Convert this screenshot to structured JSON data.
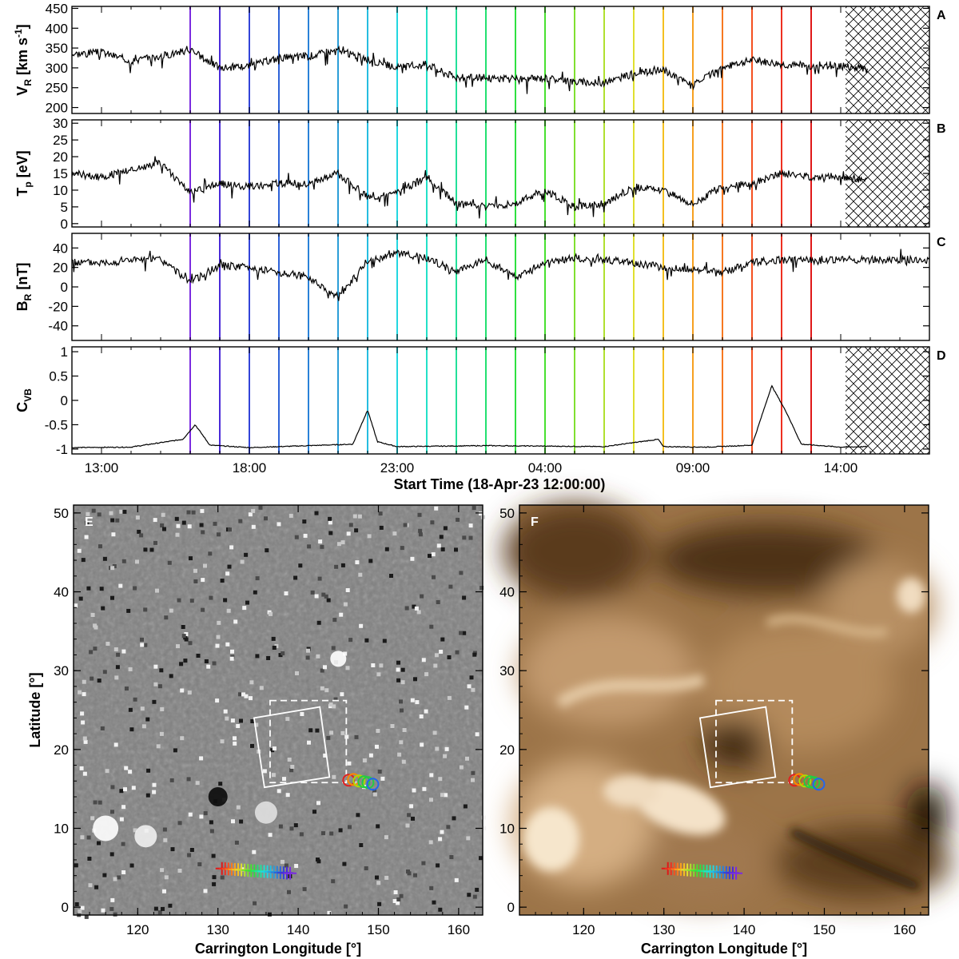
{
  "chart_data": [
    {
      "type": "line",
      "panel": "A",
      "ylabel_main": "V",
      "ylabel_sub": "R",
      "ylabel_unit": " [km s",
      "ylabel_sup": "-1",
      "ylabel_end": "]",
      "ylim": [
        185,
        455
      ],
      "yticks": [
        200,
        250,
        300,
        350,
        400,
        450
      ],
      "hatched": true,
      "x": [
        "12:00",
        "13:00",
        "14:00",
        "15:00",
        "16:00",
        "17:00",
        "18:00",
        "19:00",
        "20:00",
        "21:00",
        "22:00",
        "23:00",
        "00:00",
        "01:00",
        "02:00",
        "03:00",
        "04:00",
        "05:00",
        "06:00",
        "07:00",
        "08:00",
        "09:00",
        "10:00",
        "11:00",
        "12:00",
        "13:00",
        "14:00",
        "15:00"
      ],
      "values": [
        335,
        340,
        318,
        330,
        345,
        300,
        305,
        325,
        330,
        345,
        320,
        300,
        310,
        275,
        275,
        270,
        275,
        265,
        262,
        285,
        295,
        255,
        300,
        320,
        310,
        302,
        305,
        295
      ]
    },
    {
      "type": "line",
      "panel": "B",
      "ylabel_main": "T",
      "ylabel_sub": "p",
      "ylabel_unit": " [eV]",
      "ylim": [
        -1,
        31
      ],
      "yticks": [
        0,
        5,
        10,
        15,
        20,
        25,
        30
      ],
      "hatched": true,
      "x": [
        "12:00",
        "13:00",
        "14:00",
        "15:00",
        "16:00",
        "17:00",
        "18:00",
        "19:00",
        "20:00",
        "21:00",
        "22:00",
        "23:00",
        "00:00",
        "01:00",
        "02:00",
        "03:00",
        "04:00",
        "05:00",
        "06:00",
        "07:00",
        "08:00",
        "09:00",
        "10:00",
        "11:00",
        "12:00",
        "13:00",
        "14:00",
        "15:00"
      ],
      "values": [
        15,
        14,
        16,
        18,
        9,
        12,
        11,
        12,
        12,
        15,
        8,
        9,
        14,
        6,
        5,
        6,
        10,
        5,
        6,
        11,
        10,
        6,
        11,
        12,
        15,
        14,
        14,
        13
      ]
    },
    {
      "type": "line",
      "panel": "C",
      "ylabel_main": "B",
      "ylabel_sub": "R",
      "ylabel_unit": " [nT]",
      "ylim": [
        -55,
        55
      ],
      "yticks": [
        -40,
        -20,
        0,
        20,
        40
      ],
      "hatched": false,
      "x": [
        "12:00",
        "13:00",
        "14:00",
        "15:00",
        "16:00",
        "17:00",
        "18:00",
        "19:00",
        "20:00",
        "21:00",
        "22:00",
        "23:00",
        "00:00",
        "01:00",
        "02:00",
        "03:00",
        "04:00",
        "05:00",
        "06:00",
        "07:00",
        "08:00",
        "09:00",
        "10:00",
        "11:00",
        "12:00",
        "13:00",
        "14:00",
        "15:00",
        "16:00",
        "17:00"
      ],
      "values": [
        25,
        25,
        28,
        28,
        5,
        22,
        20,
        15,
        10,
        -10,
        25,
        35,
        30,
        15,
        28,
        10,
        25,
        30,
        28,
        25,
        20,
        18,
        15,
        25,
        28,
        27,
        28,
        28,
        28,
        28
      ]
    },
    {
      "type": "line",
      "panel": "D",
      "ylabel_main": "C",
      "ylabel_sub": "VB",
      "ylim": [
        -1.1,
        1.1
      ],
      "yticks": [
        -1.0,
        -0.5,
        0.0,
        0.5,
        1.0
      ],
      "hatched": true,
      "x": [
        "12:00",
        "14:00",
        "15:45",
        "16:10",
        "16:40",
        "18:00",
        "21:30",
        "22:00",
        "22:20",
        "23:00",
        "02:00",
        "06:00",
        "07:50",
        "08:00",
        "09:30",
        "11:00",
        "11:40",
        "12:10",
        "12:40",
        "14:00",
        "15:00"
      ],
      "values": [
        -0.97,
        -0.96,
        -0.8,
        -0.5,
        -0.92,
        -0.97,
        -0.9,
        -0.2,
        -0.85,
        -0.95,
        -0.93,
        -0.95,
        -0.8,
        -0.95,
        -0.96,
        -0.92,
        0.3,
        -0.25,
        -0.9,
        -0.96,
        -0.95
      ]
    },
    {
      "type": "heatmap",
      "panel": "E",
      "xlabel": "Carrington Longitude [°]",
      "ylabel": "Latitude [°]",
      "xlim": [
        112,
        163
      ],
      "ylim": [
        -1,
        51
      ],
      "xticks": [
        120,
        130,
        140,
        150,
        160
      ],
      "yticks": [
        0,
        10,
        20,
        30,
        40,
        50
      ],
      "colormap": "gray"
    },
    {
      "type": "heatmap",
      "panel": "F",
      "xlabel": "Carrington Longitude [°]",
      "xlim": [
        112,
        163
      ],
      "ylim": [
        -1,
        51
      ],
      "xticks": [
        120,
        130,
        140,
        150,
        160
      ],
      "yticks": [
        0,
        10,
        20,
        30,
        40,
        50
      ],
      "colormap": "sdo-aia-193-bronze"
    }
  ],
  "time_axis": {
    "ticks": [
      "13:00",
      "18:00",
      "23:00",
      "04:00",
      "09:00",
      "14:00"
    ],
    "label": "Start Time (18-Apr-23 12:00:00)"
  },
  "overlays": {
    "footpoint_crosses": {
      "lon_start": 130.5,
      "lon_end": 139.0,
      "lat_start": 4.9,
      "lat_end": 4.3,
      "count": 22
    },
    "circles": [
      {
        "lon": 146.3,
        "lat": 16.1,
        "color": "#e02020"
      },
      {
        "lon": 146.9,
        "lat": 16.2,
        "color": "#ff8800"
      },
      {
        "lon": 147.6,
        "lat": 16.0,
        "color": "#aadd00"
      },
      {
        "lon": 148.2,
        "lat": 15.9,
        "color": "#22cc44"
      },
      {
        "lon": 148.7,
        "lat": 15.8,
        "color": "#22cc44"
      },
      {
        "lon": 149.3,
        "lat": 15.6,
        "color": "#2266ee"
      }
    ],
    "dashed_box": {
      "lon": [
        136.5,
        146.0
      ],
      "lat": [
        15.8,
        26.2
      ]
    },
    "solid_box_corners": [
      [
        134.5,
        24.0
      ],
      [
        142.7,
        25.4
      ],
      [
        143.9,
        16.5
      ],
      [
        135.8,
        15.2
      ]
    ]
  },
  "colors": {
    "marker_lines": [
      "#7b2be0",
      "#4a2ad8",
      "#3344d8",
      "#2e62d8",
      "#2a82d8",
      "#2b9ed8",
      "#26bde0",
      "#22d6e0",
      "#22e0c8",
      "#22e09a",
      "#22e070",
      "#2ee040",
      "#48e030",
      "#80e030",
      "#b0e030",
      "#e0e030",
      "#f4c020",
      "#f7a020",
      "#f77820",
      "#f45020",
      "#ee3020",
      "#e01818"
    ]
  }
}
